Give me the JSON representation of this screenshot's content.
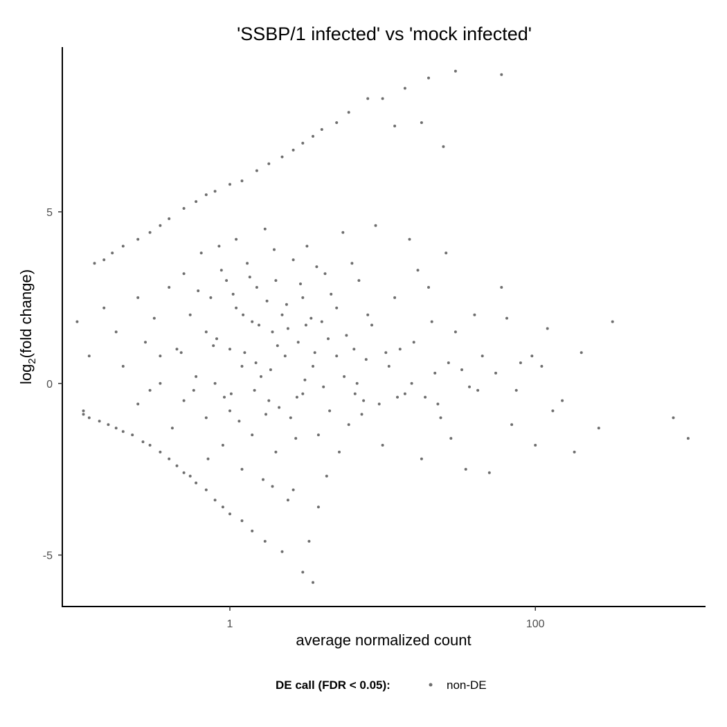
{
  "chart_data": {
    "type": "scatter",
    "title": "'SSBP/1 infected' vs 'mock infected'",
    "xlabel": "average normalized count",
    "ylabel_base": "log",
    "ylabel_sub": "2",
    "ylabel_rest": "(fold change)",
    "x_scale": "log10",
    "xlim": [
      0.08,
      1300
    ],
    "ylim": [
      -6.5,
      9.8
    ],
    "x_ticks": [
      {
        "value": 1,
        "label": "1"
      },
      {
        "value": 100,
        "label": "100"
      }
    ],
    "y_ticks": [
      {
        "value": -5,
        "label": "-5"
      },
      {
        "value": 0,
        "label": "0"
      },
      {
        "value": 5,
        "label": "5"
      }
    ],
    "grid": false,
    "legend": {
      "position": "bottom",
      "title": "DE call (FDR < 0.05):",
      "items": [
        {
          "label": "non-DE",
          "color": "#6e6e6e"
        }
      ]
    },
    "series": [
      {
        "name": "non-DE",
        "color": "#6e6e6e",
        "points": [
          [
            0.1,
            1.8
          ],
          [
            0.12,
            0.8
          ],
          [
            0.11,
            -0.8
          ],
          [
            0.13,
            3.5
          ],
          [
            0.15,
            3.6
          ],
          [
            0.17,
            3.8
          ],
          [
            0.2,
            4.0
          ],
          [
            0.25,
            4.2
          ],
          [
            0.3,
            4.4
          ],
          [
            0.35,
            4.6
          ],
          [
            0.4,
            4.8
          ],
          [
            0.5,
            5.1
          ],
          [
            0.6,
            5.3
          ],
          [
            0.7,
            5.5
          ],
          [
            0.8,
            5.6
          ],
          [
            1.0,
            5.8
          ],
          [
            1.2,
            5.9
          ],
          [
            1.5,
            6.2
          ],
          [
            1.8,
            6.4
          ],
          [
            2.2,
            6.6
          ],
          [
            2.6,
            6.8
          ],
          [
            3.0,
            7.0
          ],
          [
            3.5,
            7.2
          ],
          [
            4.0,
            7.4
          ],
          [
            5.0,
            7.6
          ],
          [
            6.0,
            7.9
          ],
          [
            8.0,
            8.3
          ],
          [
            10.0,
            8.3
          ],
          [
            14.0,
            8.6
          ],
          [
            20.0,
            8.9
          ],
          [
            30.0,
            9.1
          ],
          [
            60.0,
            9.0
          ],
          [
            18.0,
            7.6
          ],
          [
            12.0,
            7.5
          ],
          [
            25.0,
            6.9
          ],
          [
            0.11,
            -0.9
          ],
          [
            0.12,
            -1.0
          ],
          [
            0.14,
            -1.1
          ],
          [
            0.16,
            -1.2
          ],
          [
            0.18,
            -1.3
          ],
          [
            0.2,
            -1.4
          ],
          [
            0.23,
            -1.5
          ],
          [
            0.27,
            -1.7
          ],
          [
            0.3,
            -1.8
          ],
          [
            0.35,
            -2.0
          ],
          [
            0.4,
            -2.2
          ],
          [
            0.45,
            -2.4
          ],
          [
            0.5,
            -2.6
          ],
          [
            0.55,
            -2.7
          ],
          [
            0.6,
            -2.9
          ],
          [
            0.7,
            -3.1
          ],
          [
            0.8,
            -3.4
          ],
          [
            0.9,
            -3.6
          ],
          [
            1.0,
            -3.8
          ],
          [
            1.2,
            -4.0
          ],
          [
            1.4,
            -4.3
          ],
          [
            1.7,
            -4.6
          ],
          [
            2.2,
            -4.9
          ],
          [
            3.0,
            -5.5
          ],
          [
            3.5,
            -5.8
          ],
          [
            3.3,
            -4.6
          ],
          [
            0.15,
            2.2
          ],
          [
            0.18,
            1.5
          ],
          [
            0.2,
            0.5
          ],
          [
            0.25,
            2.5
          ],
          [
            0.28,
            1.2
          ],
          [
            0.3,
            -0.2
          ],
          [
            0.35,
            0.8
          ],
          [
            0.4,
            2.8
          ],
          [
            0.45,
            1.0
          ],
          [
            0.5,
            3.2
          ],
          [
            0.5,
            -0.5
          ],
          [
            0.55,
            2.0
          ],
          [
            0.6,
            0.2
          ],
          [
            0.65,
            3.8
          ],
          [
            0.7,
            -1.0
          ],
          [
            0.7,
            1.5
          ],
          [
            0.75,
            2.5
          ],
          [
            0.8,
            0.0
          ],
          [
            0.85,
            4.0
          ],
          [
            0.9,
            -1.8
          ],
          [
            0.95,
            3.0
          ],
          [
            1.0,
            1.0
          ],
          [
            1.0,
            -0.8
          ],
          [
            1.1,
            2.2
          ],
          [
            1.1,
            4.2
          ],
          [
            1.2,
            -2.5
          ],
          [
            1.2,
            0.5
          ],
          [
            1.3,
            3.5
          ],
          [
            1.4,
            1.8
          ],
          [
            1.4,
            -1.5
          ],
          [
            1.5,
            2.8
          ],
          [
            1.6,
            0.2
          ],
          [
            1.7,
            4.5
          ],
          [
            1.8,
            -0.5
          ],
          [
            1.9,
            1.5
          ],
          [
            2.0,
            3.0
          ],
          [
            2.0,
            -2.0
          ],
          [
            2.2,
            2.0
          ],
          [
            2.3,
            0.8
          ],
          [
            2.5,
            -1.0
          ],
          [
            2.6,
            3.6
          ],
          [
            2.8,
            1.2
          ],
          [
            3.0,
            -0.3
          ],
          [
            3.0,
            2.5
          ],
          [
            3.2,
            4.0
          ],
          [
            3.5,
            0.5
          ],
          [
            3.8,
            -1.5
          ],
          [
            4.0,
            1.8
          ],
          [
            4.2,
            3.2
          ],
          [
            4.5,
            -0.8
          ],
          [
            5.0,
            0.8
          ],
          [
            5.0,
            2.2
          ],
          [
            5.5,
            4.4
          ],
          [
            6.0,
            -1.2
          ],
          [
            6.5,
            1.0
          ],
          [
            7.0,
            3.0
          ],
          [
            7.5,
            -0.5
          ],
          [
            8.0,
            2.0
          ],
          [
            9.0,
            4.6
          ],
          [
            10.0,
            -1.8
          ],
          [
            11.0,
            0.5
          ],
          [
            12.0,
            2.5
          ],
          [
            14.0,
            -0.3
          ],
          [
            15.0,
            4.2
          ],
          [
            16.0,
            1.2
          ],
          [
            18.0,
            -2.2
          ],
          [
            20.0,
            2.8
          ],
          [
            22.0,
            0.3
          ],
          [
            24.0,
            -1.0
          ],
          [
            26.0,
            3.8
          ],
          [
            30.0,
            1.5
          ],
          [
            35.0,
            -2.5
          ],
          [
            40.0,
            2.0
          ],
          [
            45.0,
            0.8
          ],
          [
            55.0,
            0.3
          ],
          [
            60.0,
            2.8
          ],
          [
            70.0,
            -1.2
          ],
          [
            80.0,
            0.6
          ],
          [
            95.0,
            0.8
          ],
          [
            110.0,
            0.5
          ],
          [
            130.0,
            -0.8
          ],
          [
            150.0,
            -0.5
          ],
          [
            180.0,
            -2.0
          ],
          [
            200.0,
            0.9
          ],
          [
            260.0,
            -1.3
          ],
          [
            320.0,
            1.8
          ],
          [
            800.0,
            -1.0
          ],
          [
            1000.0,
            -1.6
          ],
          [
            100.0,
            -1.8
          ],
          [
            120.0,
            1.6
          ],
          [
            0.25,
            -0.6
          ],
          [
            0.32,
            1.9
          ],
          [
            0.42,
            -1.3
          ],
          [
            0.48,
            0.9
          ],
          [
            0.62,
            2.7
          ],
          [
            0.72,
            -2.2
          ],
          [
            0.78,
            1.1
          ],
          [
            0.88,
            3.3
          ],
          [
            0.92,
            -0.4
          ],
          [
            1.05,
            2.6
          ],
          [
            1.15,
            -1.1
          ],
          [
            1.25,
            0.9
          ],
          [
            1.35,
            3.1
          ],
          [
            1.45,
            -0.2
          ],
          [
            1.55,
            1.7
          ],
          [
            1.65,
            -2.8
          ],
          [
            1.75,
            2.4
          ],
          [
            1.85,
            0.4
          ],
          [
            1.95,
            3.9
          ],
          [
            2.1,
            -0.7
          ],
          [
            2.4,
            1.6
          ],
          [
            2.7,
            -1.6
          ],
          [
            2.9,
            2.9
          ],
          [
            3.1,
            0.1
          ],
          [
            3.4,
            1.9
          ],
          [
            3.7,
            3.4
          ],
          [
            4.1,
            -0.1
          ],
          [
            4.6,
            2.6
          ],
          [
            5.2,
            -2.0
          ],
          [
            5.8,
            1.4
          ],
          [
            6.3,
            3.5
          ],
          [
            6.8,
            0.0
          ],
          [
            7.3,
            -0.9
          ],
          [
            8.5,
            1.7
          ],
          [
            9.5,
            -0.6
          ],
          [
            13.0,
            1.0
          ],
          [
            17.0,
            3.3
          ],
          [
            19.0,
            -0.4
          ],
          [
            21.0,
            1.8
          ],
          [
            28.0,
            -1.6
          ],
          [
            33.0,
            0.4
          ],
          [
            50.0,
            -2.6
          ],
          [
            65.0,
            1.9
          ],
          [
            75.0,
            -0.2
          ],
          [
            2.4,
            -3.4
          ],
          [
            3.8,
            -3.6
          ],
          [
            4.3,
            -2.7
          ],
          [
            1.9,
            -3.0
          ],
          [
            2.6,
            -3.1
          ],
          [
            0.35,
            0.0
          ],
          [
            0.58,
            -0.2
          ],
          [
            0.82,
            1.3
          ],
          [
            1.02,
            -0.3
          ],
          [
            1.22,
            2.0
          ],
          [
            1.48,
            0.6
          ],
          [
            1.72,
            -0.9
          ],
          [
            2.05,
            1.1
          ],
          [
            2.35,
            2.3
          ],
          [
            2.75,
            -0.4
          ],
          [
            3.15,
            1.7
          ],
          [
            3.6,
            0.9
          ],
          [
            4.4,
            1.3
          ],
          [
            5.6,
            0.2
          ],
          [
            6.6,
            -0.3
          ],
          [
            7.8,
            0.7
          ],
          [
            10.5,
            0.9
          ],
          [
            12.5,
            -0.4
          ],
          [
            15.5,
            0.0
          ],
          [
            23.0,
            -0.6
          ],
          [
            27.0,
            0.6
          ],
          [
            37.0,
            -0.1
          ],
          [
            42.0,
            -0.2
          ]
        ]
      }
    ]
  }
}
